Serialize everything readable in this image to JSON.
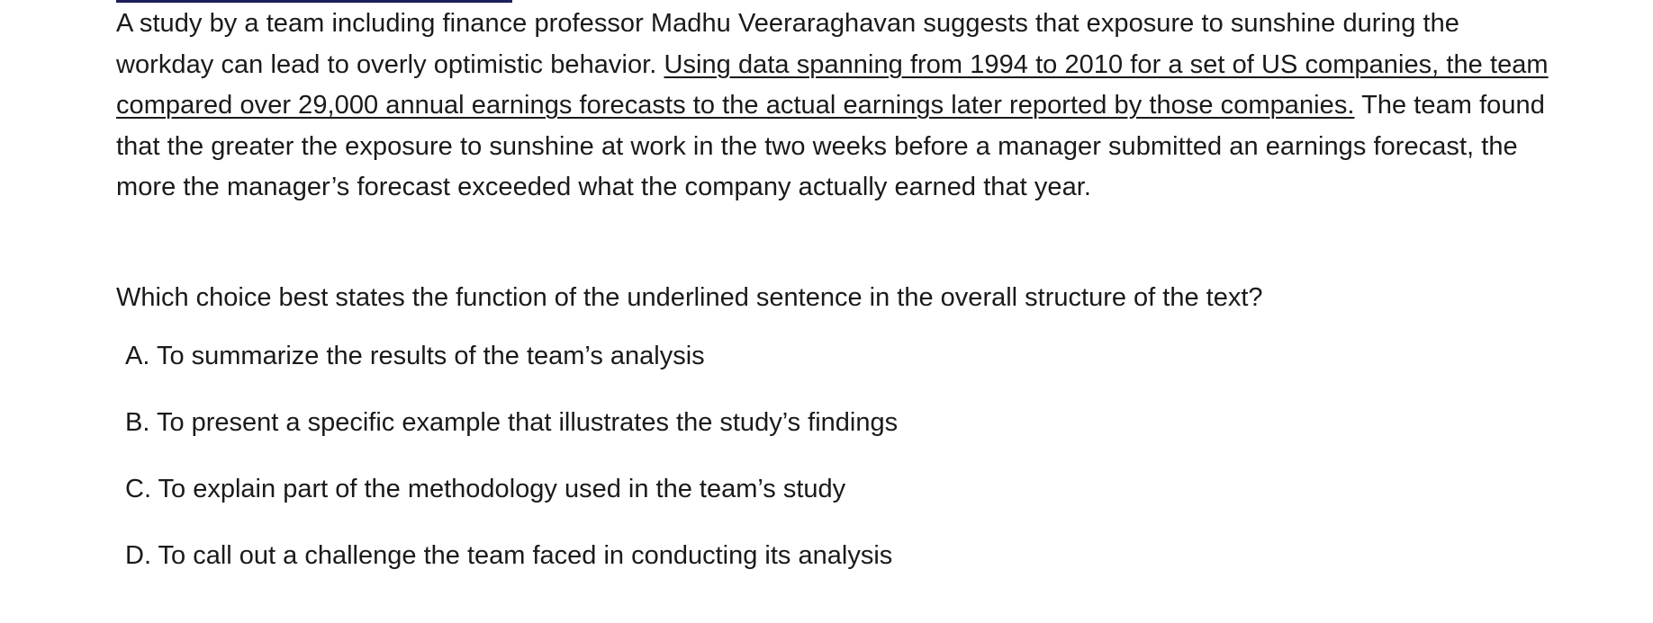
{
  "passage": {
    "before": "A study by a team including finance professor Madhu Veeraraghavan suggests that exposure to sunshine during the workday can lead to overly optimistic behavior. ",
    "underlined": "Using data spanning from 1994 to 2010 for a set of US companies, the team compared over 29,000 annual earnings forecasts to the actual earnings later reported by those companies.",
    "after": " The team found that the greater the exposure to sunshine at work in the two weeks before a manager submitted an earnings forecast, the more the manager’s forecast exceeded what the company actually earned that year."
  },
  "question": "Which choice best states the function of the underlined sentence in the overall structure of the text?",
  "choices": [
    {
      "letter": "A.",
      "text": "To summarize the results of the team’s analysis"
    },
    {
      "letter": "B.",
      "text": "To present a specific example that illustrates the study’s findings"
    },
    {
      "letter": "C.",
      "text": "To explain part of the methodology used in the team’s study"
    },
    {
      "letter": "D.",
      "text": "To call out a challenge the team faced in conducting its analysis"
    }
  ],
  "colors": {
    "text": "#1a1a1a",
    "rule": "#1c1f5a",
    "background": "#ffffff"
  }
}
